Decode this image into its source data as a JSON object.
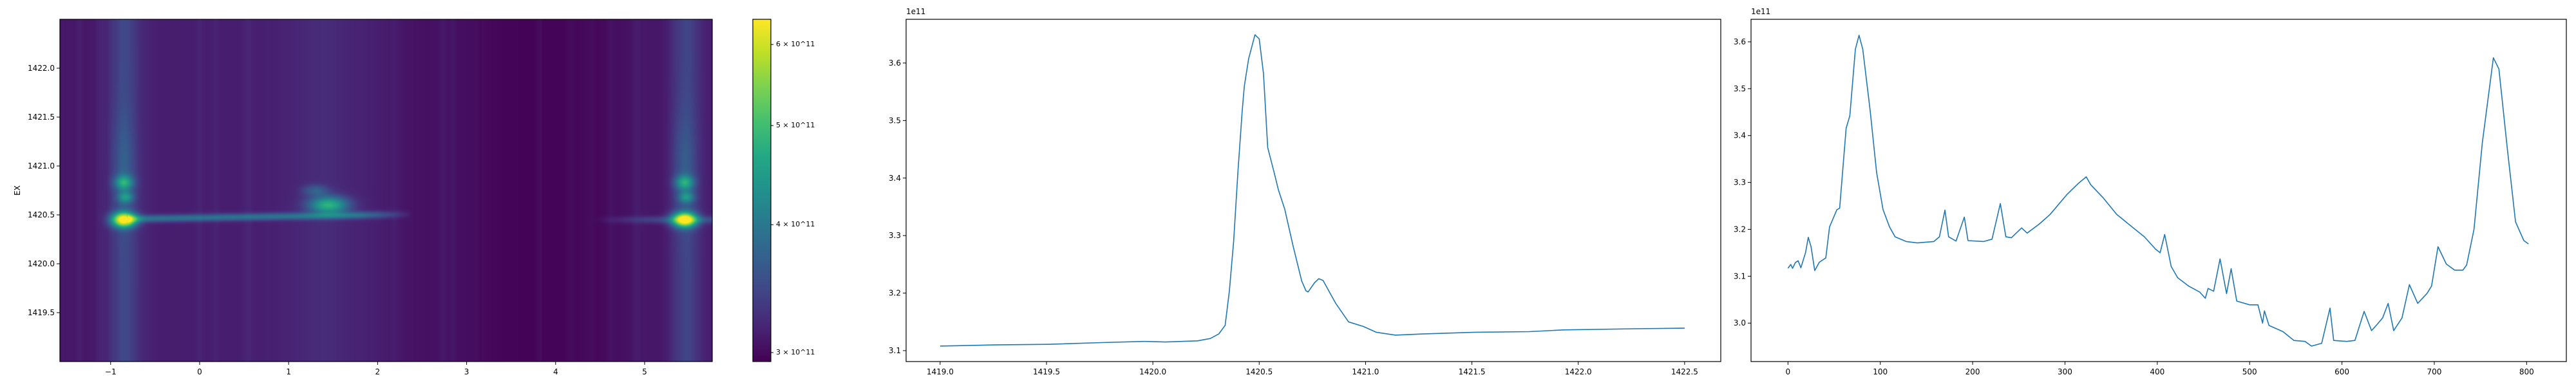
{
  "chart_data": [
    {
      "type": "heatmap",
      "colormap": "viridis",
      "xlim": [
        -1.57,
        5.76
      ],
      "ylim": [
        1419.0,
        1422.5
      ],
      "xticks": [
        -1,
        0,
        1,
        2,
        3,
        4,
        5
      ],
      "xtick_labels": [
        "−1",
        "0",
        "1",
        "2",
        "3",
        "4",
        "5"
      ],
      "yticks": [
        1419.5,
        1420.0,
        1420.5,
        1421.0,
        1421.5,
        1422.0
      ],
      "ytick_labels": [
        "1419.5",
        "1420.0",
        "1420.5",
        "1421.0",
        "1421.5",
        "1422.0"
      ],
      "xlabel": "",
      "ylabel": "EX",
      "bright_features": [
        {
          "x": -0.85,
          "y": 1420.45,
          "value": 640000000000.0
        },
        {
          "x": -0.85,
          "y": 1420.83,
          "value": 460000000000.0
        },
        {
          "x": -0.85,
          "y": 1420.68,
          "value": 430000000000.0
        },
        {
          "x": 1.45,
          "y": 1420.6,
          "value": 500000000000.0
        },
        {
          "x": 5.45,
          "y": 1420.45,
          "value": 640000000000.0
        },
        {
          "x": 5.45,
          "y": 1420.83,
          "value": 460000000000.0
        },
        {
          "x": 5.45,
          "y": 1420.68,
          "value": 430000000000.0
        }
      ],
      "colorbar": {
        "scale": "log",
        "range": [
          294000000000.0,
          635000000000.0
        ],
        "ticks": [
          300000000000.0,
          400000000000.0,
          500000000000.0,
          600000000000.0
        ],
        "tick_labels": [
          "3 × 10^11",
          "4 × 10^11",
          "5 × 10^11",
          "6 × 10^11"
        ]
      }
    },
    {
      "type": "line",
      "color": "#1f77b4",
      "offset_text": "1e11",
      "xlim": [
        1418.84,
        1422.67
      ],
      "ylim": [
        3.081,
        3.676
      ],
      "xticks": [
        1419.0,
        1419.5,
        1420.0,
        1420.5,
        1421.0,
        1421.5,
        1422.0,
        1422.5
      ],
      "xtick_labels": [
        "1419.0",
        "1419.5",
        "1420.0",
        "1420.5",
        "1421.0",
        "1421.5",
        "1422.0",
        "1422.5"
      ],
      "yticks": [
        3.1,
        3.2,
        3.3,
        3.4,
        3.5,
        3.6
      ],
      "ytick_labels": [
        "3.1",
        "3.2",
        "3.3",
        "3.4",
        "3.5",
        "3.6"
      ],
      "x": [
        1419.0,
        1419.26,
        1419.51,
        1419.76,
        1419.96,
        1420.06,
        1420.21,
        1420.27,
        1420.31,
        1420.34,
        1420.36,
        1420.38,
        1420.4,
        1420.42,
        1420.43,
        1420.45,
        1420.48,
        1420.5,
        1420.52,
        1420.54,
        1420.57,
        1420.59,
        1420.62,
        1420.66,
        1420.7,
        1420.72,
        1420.73,
        1420.76,
        1420.78,
        1420.8,
        1420.86,
        1420.92,
        1420.99,
        1421.05,
        1421.14,
        1421.27,
        1421.52,
        1421.77,
        1421.93,
        1422.27,
        1422.5
      ],
      "y": [
        3.108,
        3.11,
        3.111,
        3.114,
        3.116,
        3.115,
        3.117,
        3.121,
        3.129,
        3.144,
        3.204,
        3.29,
        3.41,
        3.517,
        3.56,
        3.607,
        3.649,
        3.642,
        3.582,
        3.453,
        3.41,
        3.38,
        3.346,
        3.281,
        3.221,
        3.204,
        3.202,
        3.218,
        3.225,
        3.222,
        3.182,
        3.15,
        3.142,
        3.132,
        3.127,
        3.129,
        3.132,
        3.133,
        3.136,
        3.138,
        3.139
      ]
    },
    {
      "type": "line",
      "color": "#1f77b4",
      "offset_text": "1e11",
      "xlim": [
        -40,
        843
      ],
      "ylim": [
        2.918,
        3.648
      ],
      "xticks": [
        0,
        100,
        200,
        300,
        400,
        500,
        600,
        700,
        800
      ],
      "xtick_labels": [
        "0",
        "100",
        "200",
        "300",
        "400",
        "500",
        "600",
        "700",
        "800"
      ],
      "yticks": [
        3.0,
        3.1,
        3.2,
        3.3,
        3.4,
        3.5,
        3.6
      ],
      "ytick_labels": [
        "3.0",
        "3.1",
        "3.2",
        "3.3",
        "3.4",
        "3.5",
        "3.6"
      ],
      "x": [
        0,
        3,
        5,
        8,
        11,
        14,
        19,
        22,
        25,
        29,
        34,
        41,
        45,
        53,
        56,
        63,
        67,
        73,
        77,
        81,
        89,
        96,
        103,
        110,
        116,
        128,
        140,
        158,
        164,
        170,
        174,
        182,
        191,
        195,
        212,
        221,
        230,
        236,
        242,
        253,
        259,
        272,
        284,
        302,
        314,
        323,
        328,
        341,
        356,
        374,
        386,
        398,
        403,
        408,
        415,
        422,
        434,
        446,
        452,
        455,
        461,
        468,
        475,
        480,
        486,
        500,
        509,
        514,
        516,
        521,
        536,
        548,
        560,
        567,
        578,
        587,
        591,
        605,
        614,
        624,
        632,
        638,
        644,
        650,
        656,
        665,
        673,
        682,
        692,
        697,
        704,
        713,
        722,
        731,
        735,
        743,
        752,
        764,
        770,
        779,
        788,
        797,
        802
      ],
      "y": [
        3.117,
        3.125,
        3.117,
        3.129,
        3.133,
        3.118,
        3.15,
        3.183,
        3.163,
        3.112,
        3.13,
        3.139,
        3.205,
        3.242,
        3.245,
        3.416,
        3.442,
        3.584,
        3.614,
        3.584,
        3.453,
        3.321,
        3.242,
        3.205,
        3.184,
        3.174,
        3.171,
        3.174,
        3.184,
        3.241,
        3.184,
        3.175,
        3.226,
        3.176,
        3.174,
        3.179,
        3.255,
        3.184,
        3.182,
        3.203,
        3.192,
        3.211,
        3.232,
        3.274,
        3.297,
        3.312,
        3.295,
        3.268,
        3.232,
        3.203,
        3.184,
        3.158,
        3.15,
        3.189,
        3.121,
        3.097,
        3.079,
        3.066,
        3.053,
        3.074,
        3.068,
        3.137,
        3.063,
        3.116,
        3.047,
        3.039,
        3.039,
        3.0,
        3.026,
        2.995,
        2.982,
        2.963,
        2.961,
        2.951,
        2.957,
        3.032,
        2.963,
        2.961,
        2.963,
        3.025,
        2.984,
        2.997,
        3.011,
        3.042,
        2.984,
        3.011,
        3.082,
        3.042,
        3.063,
        3.079,
        3.163,
        3.126,
        3.113,
        3.113,
        3.124,
        3.2,
        3.384,
        3.566,
        3.542,
        3.374,
        3.216,
        3.176,
        3.169
      ]
    }
  ]
}
